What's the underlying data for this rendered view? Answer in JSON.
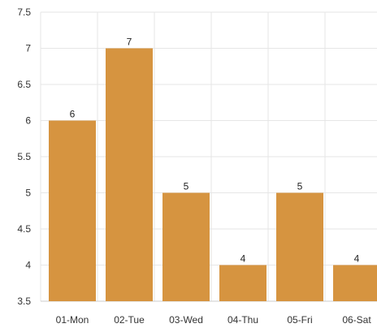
{
  "chart_data": {
    "type": "bar",
    "categories": [
      "01-Mon",
      "02-Tue",
      "03-Wed",
      "04-Thu",
      "05-Fri",
      "06-Sat"
    ],
    "values": [
      6,
      7,
      5,
      4,
      5,
      4
    ],
    "data_labels": [
      "6",
      "7",
      "5",
      "4",
      "5",
      "4"
    ],
    "title": "",
    "xlabel": "",
    "ylabel": "",
    "ylim": [
      3.5,
      7.5
    ],
    "yticks": [
      "3.5",
      "4",
      "4.5",
      "5",
      "5.5",
      "6",
      "6.5",
      "7",
      "7.5"
    ],
    "grid": true,
    "legend": "none",
    "colors": {
      "bar": "#d69440",
      "grid": "#e6e6e6",
      "axis": "#cccccc",
      "text": "#333333"
    }
  }
}
